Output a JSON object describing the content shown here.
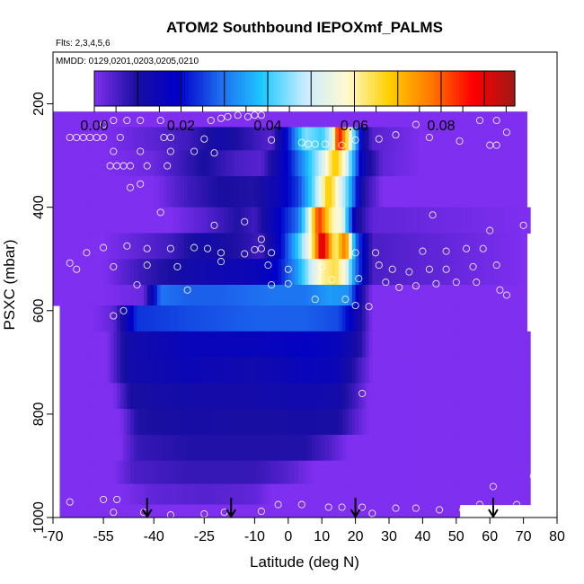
{
  "chart_data": {
    "type": "heatmap",
    "title": "ATOM2 Southbound IEPOXmf_PALMS",
    "annotations": [
      "Flts: 2,3,4,5,6",
      "MMDD: 0129,0201,0203,0205,0210"
    ],
    "xlabel": "Latitude (deg N)",
    "ylabel": "PSXC (mbar)",
    "xlim": [
      -70,
      80
    ],
    "ylim": [
      1000,
      100
    ],
    "x_ticks": [
      -70,
      -55,
      -40,
      -25,
      -10,
      0,
      10,
      20,
      30,
      40,
      50,
      60,
      70,
      80
    ],
    "x_tick_labels": [
      "-70",
      "-55",
      "-40",
      "-25",
      "-10",
      "0",
      "10",
      "20",
      "30",
      "40",
      "50",
      "60",
      "70",
      "80"
    ],
    "y_ticks": [
      200,
      400,
      600,
      800,
      1000
    ],
    "y_tick_labels": [
      "200",
      "400",
      "600",
      "800",
      "1000"
    ],
    "colorbar": {
      "range": [
        0,
        0.097
      ],
      "ticks": [
        0.0,
        0.02,
        0.04,
        0.06,
        0.08
      ],
      "tick_labels": [
        "0.00",
        "0.02",
        "0.04",
        "0.06",
        "0.08"
      ],
      "colors": [
        "#7f2ff0",
        "#1a0fa0",
        "#0000c8",
        "#1e6cf0",
        "#1ec8ff",
        "#c8ecff",
        "#fffad0",
        "#ffd000",
        "#ff7a00",
        "#ff0000",
        "#a01818"
      ]
    },
    "profile_markers_lat": [
      -42,
      -17,
      20,
      61
    ],
    "layers": [
      {
        "p_top": 215,
        "p_bot": 245,
        "lat_start": -70,
        "lat_end": 71,
        "lat": [
          -55,
          71
        ],
        "val": [
          0,
          0
        ]
      },
      {
        "p_top": 245,
        "p_bot": 290,
        "lat_start": -70,
        "lat_end": 71,
        "lat": [
          -55,
          -30,
          -20,
          -5,
          0,
          5,
          10,
          13,
          15,
          18,
          22,
          25,
          40,
          71
        ],
        "val": [
          0,
          0.006,
          0.012,
          0.004,
          0.022,
          0.045,
          0.04,
          0.05,
          0.09,
          0.06,
          0.015,
          0.004,
          0,
          0
        ]
      },
      {
        "p_top": 290,
        "p_bot": 340,
        "lat_start": -70,
        "lat_end": 71,
        "lat": [
          -55,
          -40,
          -25,
          -15,
          -8,
          0,
          5,
          10,
          14,
          17,
          22,
          28,
          40,
          71
        ],
        "val": [
          0,
          0.002,
          0.01,
          0.005,
          0.004,
          0.02,
          0.035,
          0.05,
          0.07,
          0.055,
          0.015,
          0.003,
          0,
          0
        ]
      },
      {
        "p_top": 340,
        "p_bot": 400,
        "lat_start": -70,
        "lat_end": 71,
        "lat": [
          -55,
          -40,
          -30,
          -20,
          -10,
          -3,
          3,
          8,
          12,
          15,
          18,
          22,
          28,
          71
        ],
        "val": [
          0,
          0,
          0.006,
          0.01,
          0.009,
          0.015,
          0.025,
          0.045,
          0.07,
          0.055,
          0.04,
          0.01,
          0,
          0
        ]
      },
      {
        "p_top": 400,
        "p_bot": 450,
        "lat_start": -70,
        "lat_end": 72,
        "lat": [
          -55,
          -35,
          -25,
          -15,
          -10,
          -3,
          3,
          6,
          9,
          13,
          16,
          20,
          25,
          72
        ],
        "val": [
          0,
          0,
          0.004,
          0.009,
          0.006,
          0.018,
          0.03,
          0.05,
          0.085,
          0.06,
          0.055,
          0.012,
          0.003,
          0
        ]
      },
      {
        "p_top": 450,
        "p_bot": 500,
        "lat_start": -70,
        "lat_end": 71,
        "lat": [
          -55,
          -45,
          -35,
          -25,
          -18,
          -12,
          -8,
          -2,
          3,
          7,
          10,
          14,
          17,
          20,
          25,
          71
        ],
        "val": [
          0,
          0.003,
          0.006,
          0.012,
          0.01,
          0.008,
          0.006,
          0.02,
          0.04,
          0.06,
          0.095,
          0.06,
          0.08,
          0.03,
          0.005,
          0
        ]
      },
      {
        "p_top": 500,
        "p_bot": 550,
        "lat_start": -70,
        "lat_end": 71,
        "lat": [
          -55,
          -45,
          -30,
          -20,
          -10,
          -3,
          3,
          7,
          10,
          14,
          17,
          20,
          25,
          71
        ],
        "val": [
          0,
          0.006,
          0.012,
          0.014,
          0.015,
          0.02,
          0.035,
          0.05,
          0.06,
          0.065,
          0.055,
          0.03,
          0.005,
          0
        ]
      },
      {
        "p_top": 550,
        "p_bot": 590,
        "lat_start": -70,
        "lat_end": 71,
        "lat": [
          -55,
          -43,
          -38,
          -30,
          -20,
          -5,
          5,
          12,
          18,
          22,
          25,
          71
        ],
        "val": [
          0,
          0.002,
          0.03,
          0.028,
          0.028,
          0.03,
          0.03,
          0.034,
          0.033,
          0.01,
          0,
          0
        ]
      },
      {
        "p_top": 590,
        "p_bot": 640,
        "lat_start": -68,
        "lat_end": 71,
        "lat": [
          -58,
          -52,
          -45,
          -30,
          -10,
          5,
          15,
          20,
          25,
          71
        ],
        "val": [
          0,
          0.003,
          0.024,
          0.026,
          0.028,
          0.028,
          0.026,
          0.015,
          0,
          0
        ]
      },
      {
        "p_top": 640,
        "p_bot": 690,
        "lat_start": -68,
        "lat_end": 72,
        "lat": [
          -54,
          -48,
          -30,
          -10,
          5,
          15,
          21,
          25,
          72
        ],
        "val": [
          0,
          0.012,
          0.016,
          0.016,
          0.018,
          0.016,
          0.01,
          0,
          0
        ]
      },
      {
        "p_top": 690,
        "p_bot": 740,
        "lat_start": -68,
        "lat_end": 72,
        "lat": [
          -54,
          -48,
          -30,
          -10,
          5,
          15,
          20,
          25,
          72
        ],
        "val": [
          0,
          0.012,
          0.015,
          0.013,
          0.016,
          0.015,
          0.008,
          0,
          0
        ]
      },
      {
        "p_top": 740,
        "p_bot": 790,
        "lat_start": -68,
        "lat_end": 72,
        "lat": [
          -52,
          -47,
          -30,
          -10,
          5,
          15,
          20,
          24,
          72
        ],
        "val": [
          0,
          0.01,
          0.012,
          0.012,
          0.013,
          0.012,
          0.006,
          0,
          0
        ]
      },
      {
        "p_top": 790,
        "p_bot": 840,
        "lat_start": -68,
        "lat_end": 72,
        "lat": [
          -50,
          -45,
          -30,
          -10,
          5,
          15,
          20,
          24,
          72
        ],
        "val": [
          0,
          0.009,
          0.011,
          0.01,
          0.011,
          0.01,
          0.004,
          0,
          0
        ]
      },
      {
        "p_top": 840,
        "p_bot": 890,
        "lat_start": -68,
        "lat_end": 72,
        "lat": [
          -50,
          -45,
          -30,
          -10,
          5,
          12,
          18,
          72
        ],
        "val": [
          0,
          0.007,
          0.009,
          0.009,
          0.009,
          0.005,
          0,
          0
        ]
      },
      {
        "p_top": 890,
        "p_bot": 935,
        "lat_start": -68,
        "lat_end": 72,
        "lat": [
          -52,
          -46,
          -30,
          -10,
          0,
          8,
          72
        ],
        "val": [
          0,
          0.005,
          0.007,
          0.007,
          0.004,
          0,
          0
        ]
      },
      {
        "p_top": 935,
        "p_bot": 975,
        "lat_start": -68,
        "lat_end": 72,
        "lat": [
          -50,
          -40,
          -25,
          -10,
          -5,
          72
        ],
        "val": [
          0,
          0.003,
          0.004,
          0.003,
          0,
          0
        ]
      },
      {
        "p_top": 975,
        "p_bot": 1000,
        "lat_start": -68,
        "lat_end": 51,
        "lat": [
          -68,
          51
        ],
        "val": [
          0,
          0
        ]
      }
    ],
    "sample_points": [
      [
        -48,
        232
      ],
      [
        -55,
        240
      ],
      [
        -52,
        232
      ],
      [
        -44,
        232
      ],
      [
        -38,
        232
      ],
      [
        -23,
        232
      ],
      [
        -20,
        228
      ],
      [
        -18,
        225
      ],
      [
        -15,
        222
      ],
      [
        -12,
        225
      ],
      [
        -10,
        222
      ],
      [
        -8,
        222
      ],
      [
        38,
        240
      ],
      [
        57,
        232
      ],
      [
        62,
        232
      ],
      [
        -65,
        265
      ],
      [
        -63,
        265
      ],
      [
        -61,
        265
      ],
      [
        -59,
        265
      ],
      [
        -57,
        265
      ],
      [
        -55,
        265
      ],
      [
        -50,
        265
      ],
      [
        -37,
        265
      ],
      [
        -35,
        265
      ],
      [
        -25,
        268
      ],
      [
        -5,
        270
      ],
      [
        4,
        275
      ],
      [
        6,
        278
      ],
      [
        8,
        278
      ],
      [
        11,
        278
      ],
      [
        16,
        280
      ],
      [
        20,
        270
      ],
      [
        27,
        268
      ],
      [
        32,
        260
      ],
      [
        42,
        265
      ],
      [
        51,
        272
      ],
      [
        60,
        280
      ],
      [
        62,
        280
      ],
      [
        65,
        255
      ],
      [
        -52,
        292
      ],
      [
        -44,
        292
      ],
      [
        -35,
        292
      ],
      [
        -28,
        292
      ],
      [
        -22,
        295
      ],
      [
        -53,
        320
      ],
      [
        -51,
        320
      ],
      [
        -49,
        320
      ],
      [
        -47,
        320
      ],
      [
        -42,
        320
      ],
      [
        -36,
        320
      ],
      [
        -44,
        355
      ],
      [
        -47,
        362
      ],
      [
        -38,
        410
      ],
      [
        -22,
        435
      ],
      [
        -13,
        428
      ],
      [
        43,
        415
      ],
      [
        60,
        445
      ],
      [
        70,
        435
      ],
      [
        -60,
        488
      ],
      [
        -55,
        478
      ],
      [
        -48,
        475
      ],
      [
        -42,
        480
      ],
      [
        -35,
        480
      ],
      [
        -28,
        478
      ],
      [
        -24,
        480
      ],
      [
        -20,
        488
      ],
      [
        -13,
        490
      ],
      [
        -10,
        482
      ],
      [
        -8,
        480
      ],
      [
        -8,
        462
      ],
      [
        -5,
        488
      ],
      [
        20,
        488
      ],
      [
        26,
        488
      ],
      [
        40,
        485
      ],
      [
        47,
        485
      ],
      [
        53,
        480
      ],
      [
        58,
        480
      ],
      [
        -65,
        508
      ],
      [
        -63,
        520
      ],
      [
        -52,
        515
      ],
      [
        -42,
        512
      ],
      [
        -33,
        515
      ],
      [
        -20,
        505
      ],
      [
        -6,
        512
      ],
      [
        0,
        520
      ],
      [
        10,
        515
      ],
      [
        27,
        512
      ],
      [
        31,
        520
      ],
      [
        36,
        525
      ],
      [
        42,
        520
      ],
      [
        47,
        520
      ],
      [
        55,
        515
      ],
      [
        62,
        512
      ],
      [
        -45,
        550
      ],
      [
        -30,
        560
      ],
      [
        -5,
        550
      ],
      [
        0,
        548
      ],
      [
        13,
        540
      ],
      [
        21,
        538
      ],
      [
        29,
        545
      ],
      [
        33,
        555
      ],
      [
        38,
        552
      ],
      [
        44,
        548
      ],
      [
        50,
        545
      ],
      [
        56,
        545
      ],
      [
        63,
        560
      ],
      [
        65,
        570
      ],
      [
        -49,
        600
      ],
      [
        -52,
        610
      ],
      [
        20,
        590
      ],
      [
        24,
        592
      ],
      [
        8,
        578
      ],
      [
        17,
        578
      ],
      [
        22,
        760
      ],
      [
        73,
        920
      ],
      [
        61,
        940
      ],
      [
        -55,
        965
      ],
      [
        -51,
        965
      ],
      [
        -65,
        970
      ],
      [
        -52,
        990
      ],
      [
        -43,
        990
      ],
      [
        -35,
        995
      ],
      [
        -25,
        993
      ],
      [
        -19,
        990
      ],
      [
        -8,
        988
      ],
      [
        -3,
        975
      ],
      [
        4,
        975
      ],
      [
        12,
        980
      ],
      [
        16,
        980
      ],
      [
        22,
        980
      ],
      [
        25,
        992
      ],
      [
        32,
        982
      ],
      [
        38,
        982
      ],
      [
        45,
        985
      ],
      [
        52,
        985
      ],
      [
        57,
        975
      ],
      [
        68,
        975
      ]
    ]
  }
}
